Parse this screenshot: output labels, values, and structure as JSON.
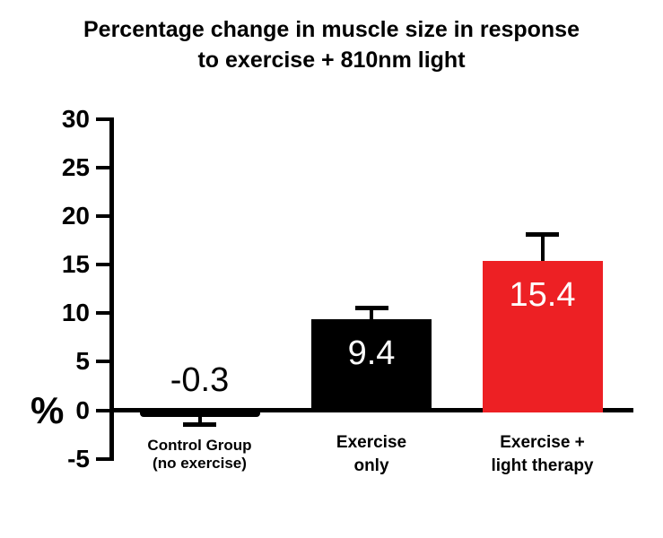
{
  "chart_data": {
    "type": "bar",
    "title": "Percentage change in muscle size in response to exercise + 810nm light",
    "title_lines": [
      "Percentage change in muscle size in response",
      "to exercise + 810nm light"
    ],
    "ylabel": "%",
    "ylim": [
      -5,
      30
    ],
    "yticks": [
      30,
      25,
      20,
      15,
      10,
      5,
      0,
      -5
    ],
    "categories": [
      "Control Group (no exercise)",
      "Exercise only",
      "Exercise + light therapy"
    ],
    "category_lines": [
      [
        "Control Group",
        "(no exercise)"
      ],
      [
        "Exercise",
        "only"
      ],
      [
        "Exercise +",
        "light therapy"
      ]
    ],
    "values": [
      -0.3,
      9.4,
      15.4
    ],
    "errors_plus": [
      1.2,
      1.1,
      2.7
    ],
    "value_labels": [
      "-0.3",
      "9.4",
      "15.4"
    ],
    "value_label_colors": [
      "#000000",
      "#ffffff",
      "#ffffff"
    ],
    "bar_colors": [
      "#000000",
      "#000000",
      "#ED2024"
    ],
    "grid": false,
    "colors": {
      "axis": "#000000",
      "accent_red": "#ED2024",
      "background": "#ffffff"
    }
  }
}
